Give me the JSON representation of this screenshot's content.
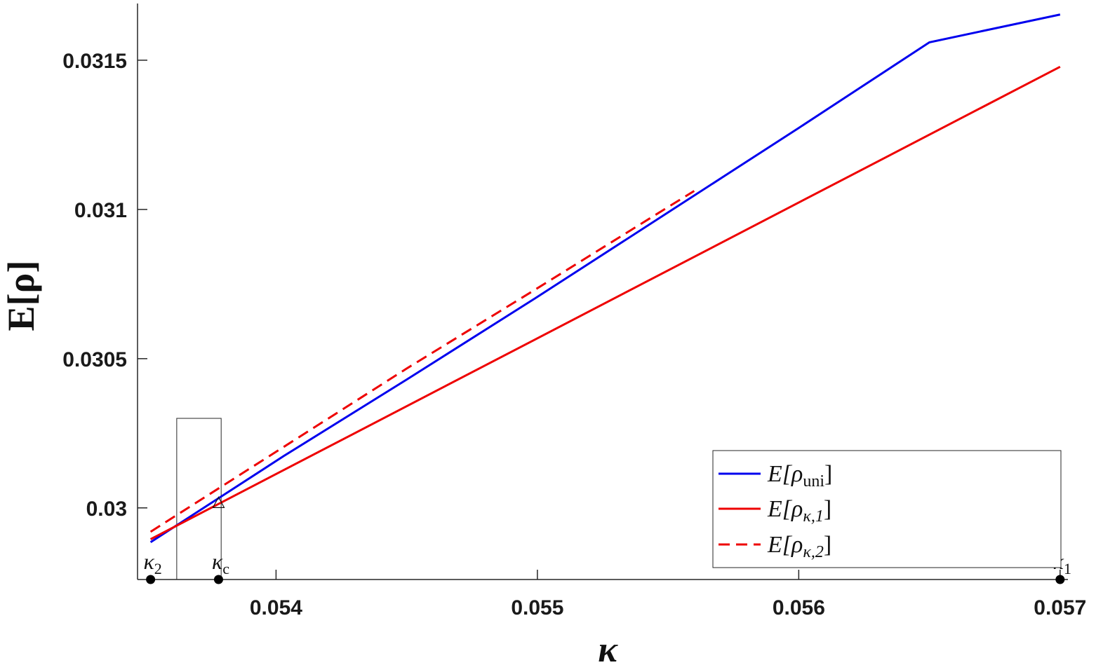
{
  "chart_data": {
    "type": "line",
    "xlabel": "κ",
    "ylabel": "E[ρ]",
    "xlim": [
      0.05347,
      0.05703
    ],
    "ylim": [
      0.02976,
      0.03169
    ],
    "xticks": [
      {
        "value": 0.054,
        "label": "0.054"
      },
      {
        "value": 0.055,
        "label": "0.055"
      },
      {
        "value": 0.056,
        "label": "0.056"
      },
      {
        "value": 0.057,
        "label": "0.057"
      }
    ],
    "yticks": [
      {
        "value": 0.03,
        "label": "0.03"
      },
      {
        "value": 0.0305,
        "label": "0.0305"
      },
      {
        "value": 0.031,
        "label": "0.031"
      },
      {
        "value": 0.0315,
        "label": "0.0315"
      }
    ],
    "series": [
      {
        "name": "E[ρuni]",
        "label_main": "E[ρ",
        "label_sub": "uni",
        "label_close": "]",
        "color": "#0000ee",
        "dash": "solid",
        "x": [
          0.05352,
          0.05403,
          0.0545,
          0.055,
          0.0555,
          0.056,
          0.0565,
          0.057
        ],
        "y": [
          0.029885,
          0.030174,
          0.03043,
          0.030707,
          0.03099,
          0.031273,
          0.03156,
          0.031653
        ]
      },
      {
        "name": "E[ρκ,1]",
        "label_main": "E[ρ",
        "label_sub": "κ,1",
        "label_close": "]",
        "color": "#ee0000",
        "dash": "solid",
        "x": [
          0.05352,
          0.057
        ],
        "y": [
          0.029895,
          0.031478
        ]
      },
      {
        "name": "E[ρκ,2]",
        "label_main": "E[ρ",
        "label_sub": "κ,2",
        "label_close": "]",
        "color": "#ee0000",
        "dash": "dashed",
        "x": [
          0.05352,
          0.0545,
          0.055,
          0.0555,
          0.0556
        ],
        "y": [
          0.02992,
          0.030467,
          0.030736,
          0.031008,
          0.031062
        ]
      }
    ],
    "points": [
      {
        "label_main": "κ",
        "label_sub": "2",
        "x": 0.05352,
        "y": 0.02976
      },
      {
        "label_main": "κ",
        "label_sub": "c",
        "x": 0.05378,
        "y": 0.02976
      },
      {
        "label_main": "κ",
        "label_sub": "1",
        "x": 0.057,
        "y": 0.02976
      }
    ],
    "crossing_marker": {
      "x": 0.05378,
      "y": 0.030015
    },
    "inset_box": {
      "x": [
        0.05362,
        0.05379
      ],
      "y": [
        0.02976,
        0.0303
      ]
    },
    "legend_position": "bottom-right",
    "grid": false
  }
}
